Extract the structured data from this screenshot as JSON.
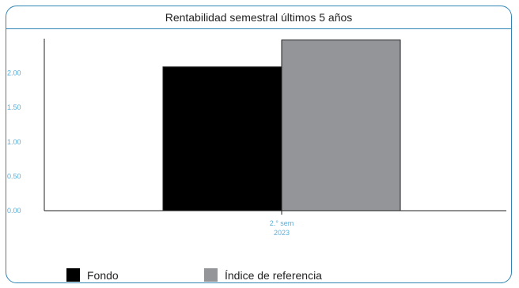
{
  "chart_data": {
    "type": "bar",
    "title": "Rentabilidad semestral últimos 5 años",
    "categories": [
      {
        "line1": "2.° sem",
        "line2": "2023"
      }
    ],
    "series": [
      {
        "name": "Fondo",
        "color": "#000000",
        "values": [
          2.09
        ]
      },
      {
        "name": "Índice de referencia",
        "color": "#939598",
        "values": [
          2.48
        ]
      }
    ],
    "yticks": [
      "0.00",
      "0.50",
      "1.00",
      "1.50",
      "2.00"
    ],
    "ytick_values": [
      0,
      0.5,
      1.0,
      1.5,
      2.0
    ],
    "ylim": [
      0,
      2.5
    ],
    "grid": false,
    "legend_position": "bottom-left",
    "xlabel": "",
    "ylabel": ""
  }
}
